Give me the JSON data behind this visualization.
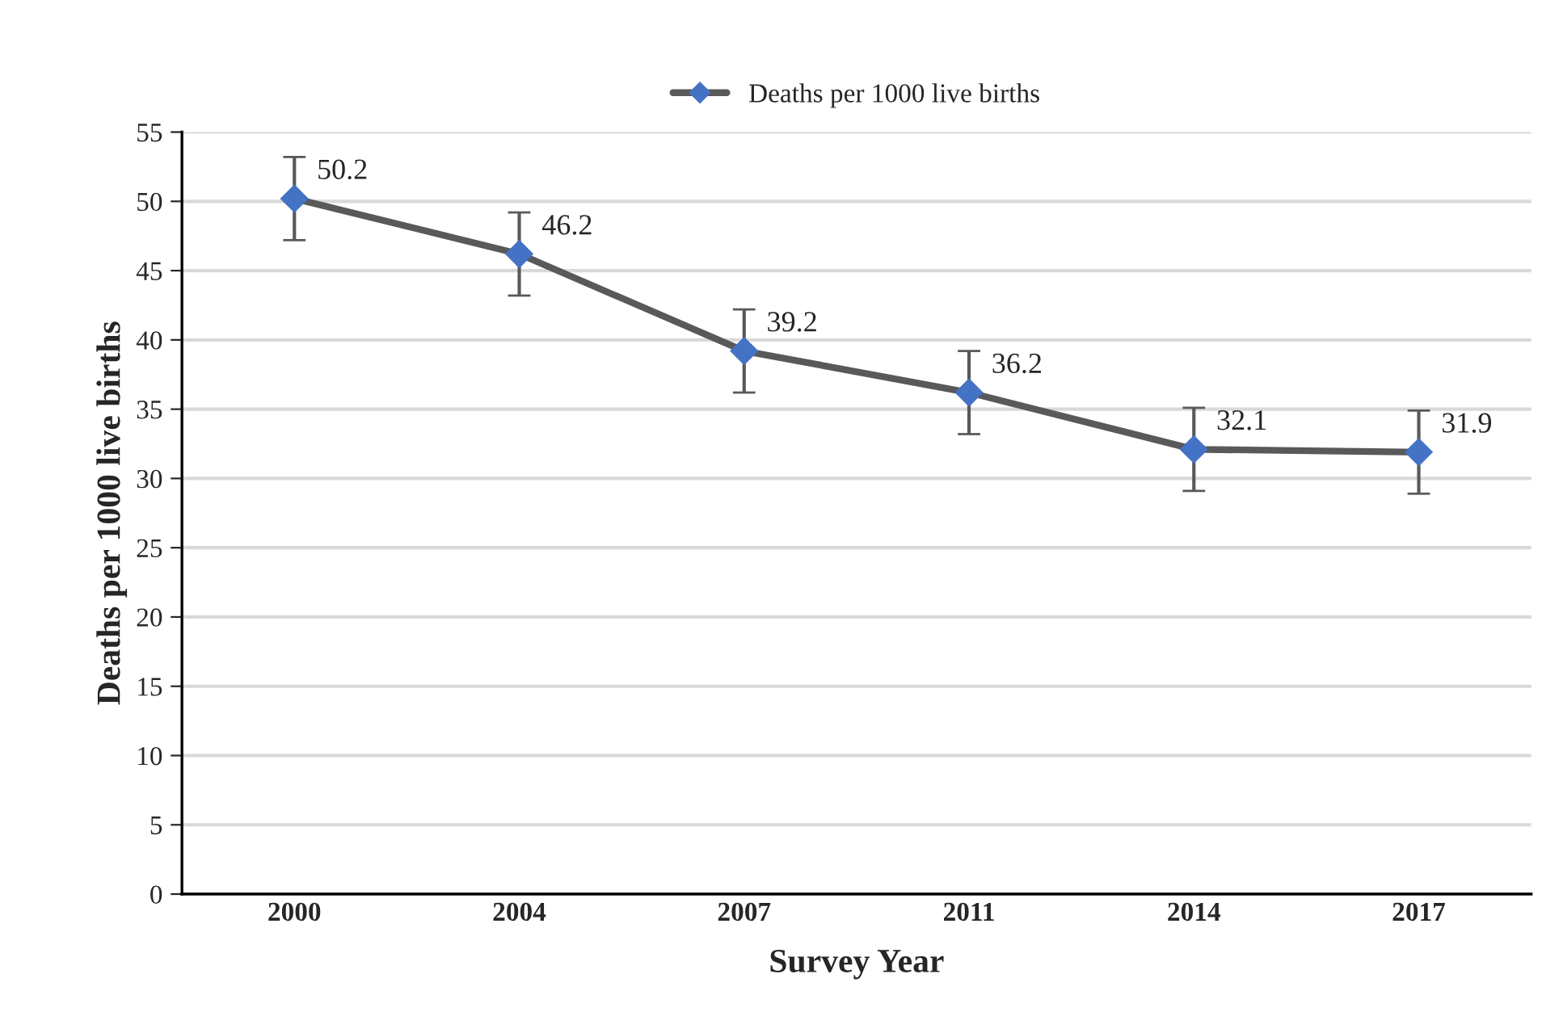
{
  "chart_data": {
    "type": "line",
    "xlabel": "Survey Year",
    "ylabel": "Deaths per 1000 live births",
    "categories": [
      "2000",
      "2004",
      "2007",
      "2011",
      "2014",
      "2017"
    ],
    "series": [
      {
        "name": "Deaths per 1000 live births",
        "color": "#4472c4",
        "values": [
          50.2,
          46.2,
          39.2,
          36.2,
          32.1,
          31.9
        ],
        "errors": [
          3,
          3,
          3,
          3,
          3,
          3
        ]
      }
    ],
    "ylim": [
      0,
      55
    ],
    "yticks": [
      0,
      5,
      10,
      15,
      20,
      25,
      30,
      35,
      40,
      45,
      50,
      55
    ],
    "grid": "y",
    "legend": "top",
    "marker": "diamond",
    "line_style": "solid",
    "data_labels": true
  }
}
